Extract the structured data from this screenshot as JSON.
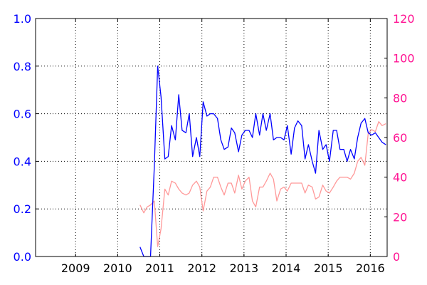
{
  "chart_data": {
    "type": "line",
    "title": "",
    "xlabel": "",
    "ylabel": "",
    "ylabel_right": "",
    "xlim": [
      2008.05,
      2016.4
    ],
    "ylim_left": [
      0.0,
      1.0
    ],
    "ylim_right": [
      0,
      120
    ],
    "grid": true,
    "x_ticks": [
      2009,
      2010,
      2011,
      2012,
      2013,
      2014,
      2015,
      2016
    ],
    "x_tick_labels": [
      "2009",
      "2010",
      "2011",
      "2012",
      "2013",
      "2014",
      "2015",
      "2016"
    ],
    "y_left_ticks": [
      0.0,
      0.2,
      0.4,
      0.6,
      0.8,
      1.0
    ],
    "y_left_tick_labels": [
      "0.0",
      "0.2",
      "0.4",
      "0.6",
      "0.8",
      "1.0"
    ],
    "y_right_ticks": [
      0,
      20,
      40,
      60,
      80,
      100,
      120
    ],
    "y_right_tick_labels": [
      "0",
      "20",
      "40",
      "60",
      "80",
      "100",
      "120"
    ],
    "colors": {
      "left_axis": "#0000ff",
      "right_axis": "#ff1493",
      "series_left": "#0000ff",
      "series_right": "#ff9999",
      "grid": "#000000",
      "axes": "#000000"
    },
    "series": [
      {
        "axis": "left",
        "color": "#0000ff",
        "x": [
          2010.53,
          2010.62,
          2010.7,
          2010.78,
          2010.87,
          2010.95,
          2011.03,
          2011.12,
          2011.2,
          2011.28,
          2011.37,
          2011.45,
          2011.53,
          2011.62,
          2011.7,
          2011.78,
          2011.87,
          2011.95,
          2012.03,
          2012.12,
          2012.2,
          2012.28,
          2012.37,
          2012.45,
          2012.53,
          2012.62,
          2012.7,
          2012.78,
          2012.87,
          2012.95,
          2013.03,
          2013.12,
          2013.2,
          2013.28,
          2013.37,
          2013.45,
          2013.53,
          2013.62,
          2013.7,
          2013.78,
          2013.87,
          2013.95,
          2014.03,
          2014.12,
          2014.2,
          2014.28,
          2014.37,
          2014.45,
          2014.53,
          2014.62,
          2014.7,
          2014.78,
          2014.87,
          2014.95,
          2015.03,
          2015.12,
          2015.2,
          2015.28,
          2015.37,
          2015.45,
          2015.53,
          2015.62,
          2015.7,
          2015.78,
          2015.87,
          2015.95,
          2016.03,
          2016.12,
          2016.2,
          2016.28,
          2016.37
        ],
        "y": [
          0.04,
          0.0,
          0.0,
          0.0,
          0.38,
          0.8,
          0.67,
          0.41,
          0.42,
          0.55,
          0.49,
          0.68,
          0.53,
          0.52,
          0.6,
          0.42,
          0.5,
          0.42,
          0.65,
          0.59,
          0.6,
          0.6,
          0.58,
          0.49,
          0.45,
          0.46,
          0.54,
          0.52,
          0.44,
          0.51,
          0.53,
          0.53,
          0.5,
          0.6,
          0.51,
          0.6,
          0.53,
          0.6,
          0.49,
          0.5,
          0.5,
          0.49,
          0.55,
          0.43,
          0.54,
          0.57,
          0.55,
          0.41,
          0.47,
          0.4,
          0.35,
          0.53,
          0.45,
          0.47,
          0.4,
          0.53,
          0.53,
          0.45,
          0.45,
          0.4,
          0.45,
          0.41,
          0.5,
          0.56,
          0.58,
          0.52,
          0.51,
          0.52,
          0.5,
          0.48,
          0.47
        ]
      },
      {
        "axis": "right",
        "color": "#ff9999",
        "x": [
          2010.53,
          2010.62,
          2010.7,
          2010.78,
          2010.87,
          2010.95,
          2011.03,
          2011.12,
          2011.2,
          2011.28,
          2011.37,
          2011.45,
          2011.53,
          2011.62,
          2011.7,
          2011.78,
          2011.87,
          2011.95,
          2012.03,
          2012.12,
          2012.2,
          2012.28,
          2012.37,
          2012.45,
          2012.53,
          2012.62,
          2012.7,
          2012.78,
          2012.87,
          2012.95,
          2013.03,
          2013.12,
          2013.2,
          2013.28,
          2013.37,
          2013.45,
          2013.53,
          2013.62,
          2013.7,
          2013.78,
          2013.87,
          2013.95,
          2014.03,
          2014.12,
          2014.2,
          2014.28,
          2014.37,
          2014.45,
          2014.53,
          2014.62,
          2014.7,
          2014.78,
          2014.87,
          2014.95,
          2015.03,
          2015.12,
          2015.2,
          2015.28,
          2015.37,
          2015.45,
          2015.53,
          2015.62,
          2015.7,
          2015.78,
          2015.87,
          2015.95,
          2016.03,
          2016.12,
          2016.2,
          2016.28,
          2016.37
        ],
        "y": [
          26,
          22,
          25,
          26,
          28,
          5,
          14,
          34,
          31,
          38,
          37,
          34,
          32,
          31,
          32,
          36,
          38,
          35,
          23,
          33,
          35,
          40,
          40,
          35,
          31,
          37,
          37,
          32,
          41,
          34,
          38,
          40,
          28,
          25,
          35,
          35,
          38,
          42,
          39,
          28,
          34,
          35,
          33,
          37,
          37,
          37,
          37,
          32,
          36,
          35,
          29,
          30,
          36,
          33,
          32,
          35,
          38,
          40,
          40,
          40,
          39,
          42,
          48,
          50,
          46,
          62,
          64,
          63,
          68,
          66,
          67
        ]
      }
    ]
  }
}
